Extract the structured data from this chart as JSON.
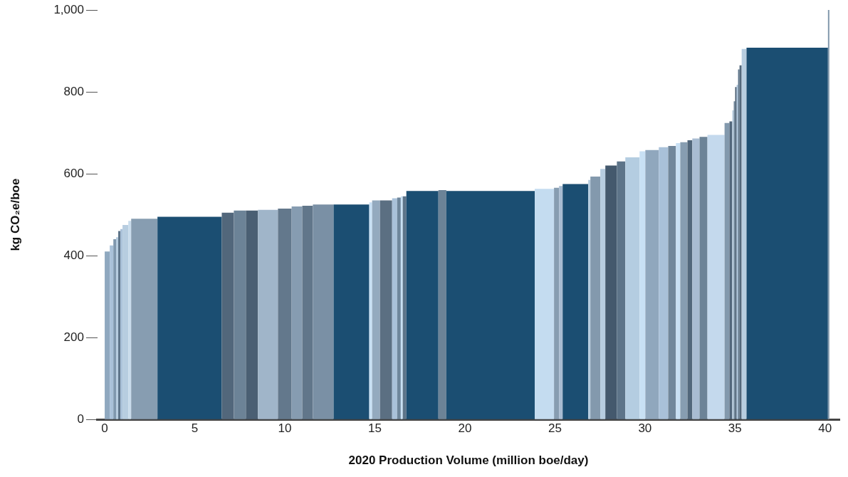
{
  "chart_data": {
    "type": "histogram",
    "xlabel": "2020 Production Volume (million boe/day)",
    "ylabel": "kg CO₂e/boe",
    "bins": [
      0,
      0.28,
      0.48,
      0.63,
      0.75,
      0.87,
      0.99,
      1.31,
      1.47,
      2.93,
      6.5,
      7.17,
      7.84,
      8.51,
      9.62,
      10.38,
      10.97,
      11.56,
      12.71,
      14.69,
      14.85,
      15.29,
      15.96,
      16.24,
      16.44,
      16.55,
      16.75,
      18.53,
      18.97,
      23.88,
      24.95,
      25.23,
      25.43,
      26.85,
      26.97,
      27.52,
      27.8,
      28.44,
      28.91,
      29.7,
      30.02,
      30.77,
      31.29,
      31.72,
      31.96,
      32.36,
      32.63,
      33.03,
      33.47,
      34.42,
      34.69,
      34.85,
      34.93,
      35.01,
      35.09,
      35.17,
      35.25,
      35.37,
      35.64,
      40.16,
      40.24
    ],
    "values": [
      410,
      425,
      440,
      445,
      460,
      465,
      475,
      485,
      490,
      495,
      505,
      510,
      510,
      512,
      515,
      520,
      522,
      525,
      525,
      530,
      535,
      535,
      540,
      542,
      545,
      545,
      558,
      560,
      558,
      563,
      566,
      570,
      575,
      585,
      593,
      612,
      620,
      630,
      640,
      655,
      658,
      665,
      668,
      675,
      677,
      682,
      686,
      690,
      695,
      724,
      728,
      755,
      777,
      812,
      817,
      855,
      865,
      905,
      908,
      1000
    ],
    "colors": [
      "#8fa8bf",
      "#a9c1d9",
      "#7f98ae",
      "#b7cde0",
      "#5d7489",
      "#a9c1d9",
      "#b7cde0",
      "#c9dcec",
      "#879db1",
      "#1b4e72",
      "#52677b",
      "#6c8397",
      "#4a5f73",
      "#a0b5c9",
      "#63788c",
      "#869cb1",
      "#61768a",
      "#7a90a5",
      "#1b4e72",
      "#c8e0f4",
      "#94aabf",
      "#5b6f82",
      "#a9c1d9",
      "#6f879c",
      "#c8e0f4",
      "#5d7489",
      "#1b4e72",
      "#6c8397",
      "#1b4e72",
      "#c4dcf0",
      "#879db1",
      "#a9bcd2",
      "#1b4e72",
      "#b7cde0",
      "#8399ad",
      "#b7cde0",
      "#44596d",
      "#5d7489",
      "#b4cde1",
      "#c8e0f4",
      "#90a7bd",
      "#a9c1d9",
      "#71879b",
      "#c8e0f4",
      "#879db1",
      "#52677b",
      "#a9bcd2",
      "#6c8397",
      "#c4d9ed",
      "#8399ad",
      "#52677b",
      "#b7cde0",
      "#6c8397",
      "#44596d",
      "#a9c1d9",
      "#5d7489",
      "#52677b",
      "#b7cde0",
      "#1b4e72",
      "#8399ad"
    ],
    "xlim": [
      -0.4,
      40.8
    ],
    "xticks": [
      0,
      5,
      10,
      15,
      20,
      25,
      30,
      35,
      40
    ],
    "ylim": [
      0,
      1000
    ],
    "yticks": [
      0,
      200,
      400,
      600,
      800,
      {
        "value": 1000,
        "label": "1,000"
      }
    ],
    "grid": false,
    "legend": false
  }
}
